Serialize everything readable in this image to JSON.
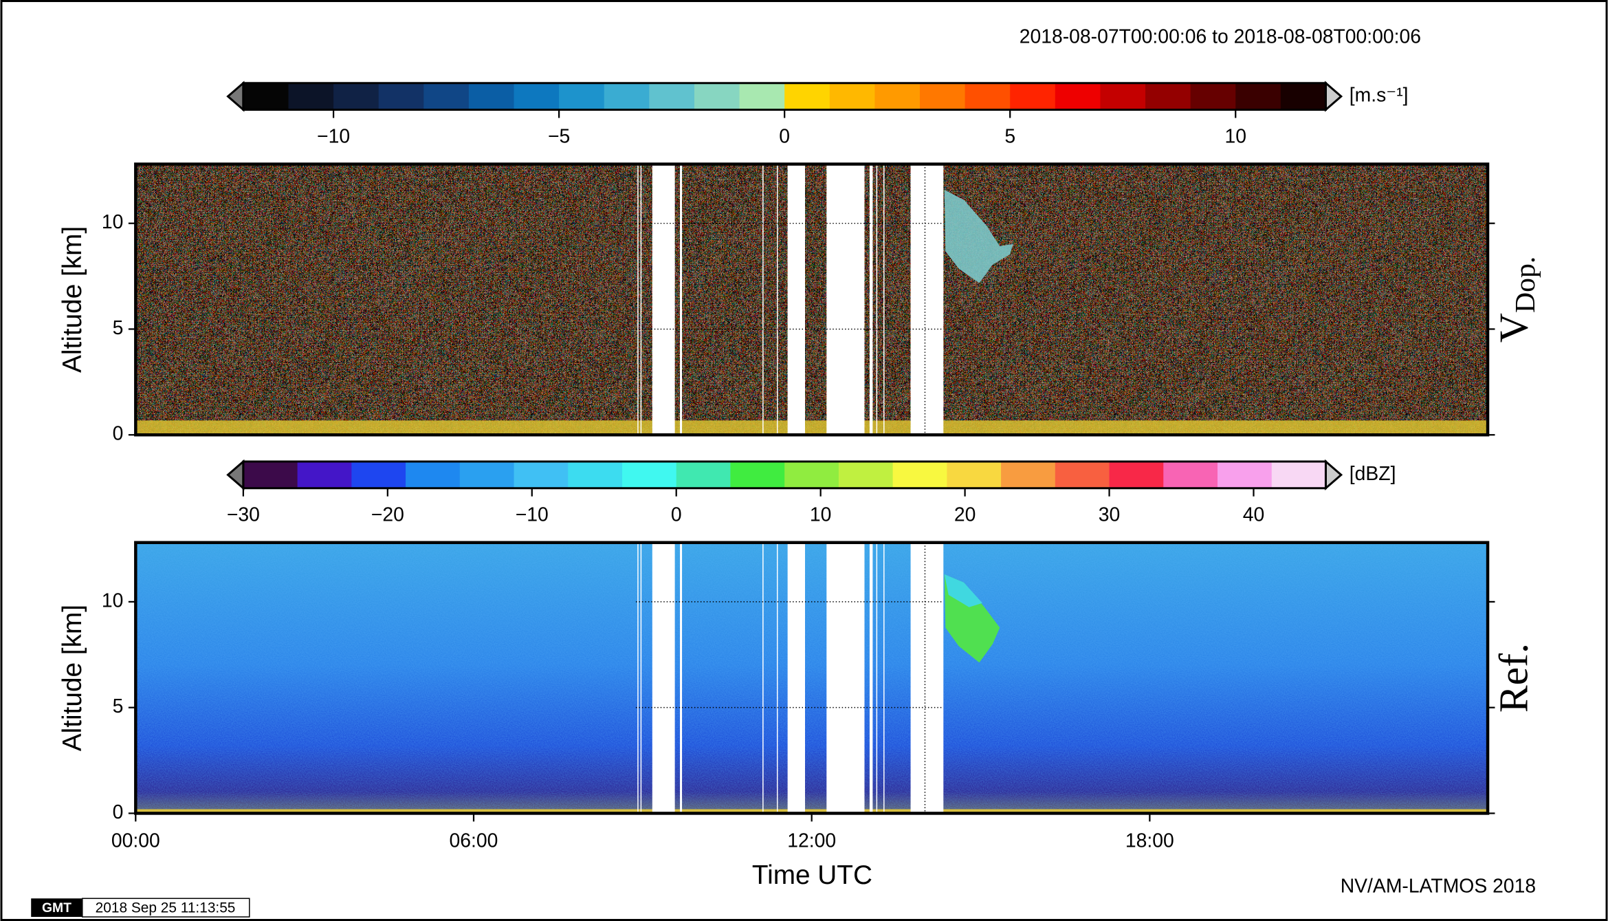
{
  "chart_data": [
    {
      "type": "heatmap",
      "title": "2018-08-07T00:00:06 to 2018-08-08T00:00:06",
      "panel_label": {
        "main": "V",
        "sub": "Dop."
      },
      "ylabel": "Altitude [km]",
      "ylim": [
        0,
        12.8
      ],
      "yticks": [
        0,
        5,
        10
      ],
      "xlim": [
        0,
        24
      ],
      "grid": true,
      "colorbar": {
        "unit": "[m.s⁻¹]",
        "clim": [
          -12,
          12
        ],
        "ticks": [
          {
            "value": -10,
            "label": "−10"
          },
          {
            "value": -5,
            "label": "−5"
          },
          0,
          5,
          10
        ],
        "colors": [
          "#050505",
          "#0c1428",
          "#102245",
          "#123266",
          "#104686",
          "#0b5ea5",
          "#0d78bf",
          "#1d93cc",
          "#3aacd2",
          "#60c2cf",
          "#87d6c1",
          "#a8e8b0",
          "#ffd400",
          "#ffb800",
          "#ff9a00",
          "#ff7800",
          "#ff5000",
          "#ff2400",
          "#ee0000",
          "#c40000",
          "#940000",
          "#660000",
          "#3a0000",
          "#180000"
        ]
      }
    },
    {
      "type": "heatmap",
      "panel_label": {
        "main": "Ref."
      },
      "ylabel": "Altitude [km]",
      "xlabel": "Time UTC",
      "ylim": [
        0,
        12.8
      ],
      "yticks": [
        0,
        5,
        10
      ],
      "xlim": [
        0,
        24
      ],
      "xticks": [
        {
          "value": 0,
          "label": "00:00"
        },
        {
          "value": 6,
          "label": "06:00"
        },
        {
          "value": 12,
          "label": "12:00"
        },
        {
          "value": 18,
          "label": "18:00"
        }
      ],
      "grid": true,
      "colorbar": {
        "unit": "[dBZ]",
        "clim": [
          -30,
          45
        ],
        "ticks": [
          {
            "value": -30,
            "label": "−30"
          },
          {
            "value": -20,
            "label": "−20"
          },
          {
            "value": -10,
            "label": "−10"
          },
          0,
          10,
          20,
          30,
          40
        ],
        "colors": [
          "#3c0a4a",
          "#4416c8",
          "#1e46f0",
          "#1e88f0",
          "#2aa0f0",
          "#40c0f4",
          "#3cdcf0",
          "#40f8f0",
          "#40e8b0",
          "#40ec40",
          "#90ec40",
          "#c0f040",
          "#f8f840",
          "#f8d840",
          "#f89c40",
          "#f86040",
          "#f82848",
          "#f864b4",
          "#f8a0ec",
          "#f8d8f4"
        ]
      }
    }
  ],
  "footer": {
    "credit": "NV/AM-LATMOS 2018",
    "logo": "GMT",
    "timestamp": "2018 Sep 25 11:13:55"
  }
}
